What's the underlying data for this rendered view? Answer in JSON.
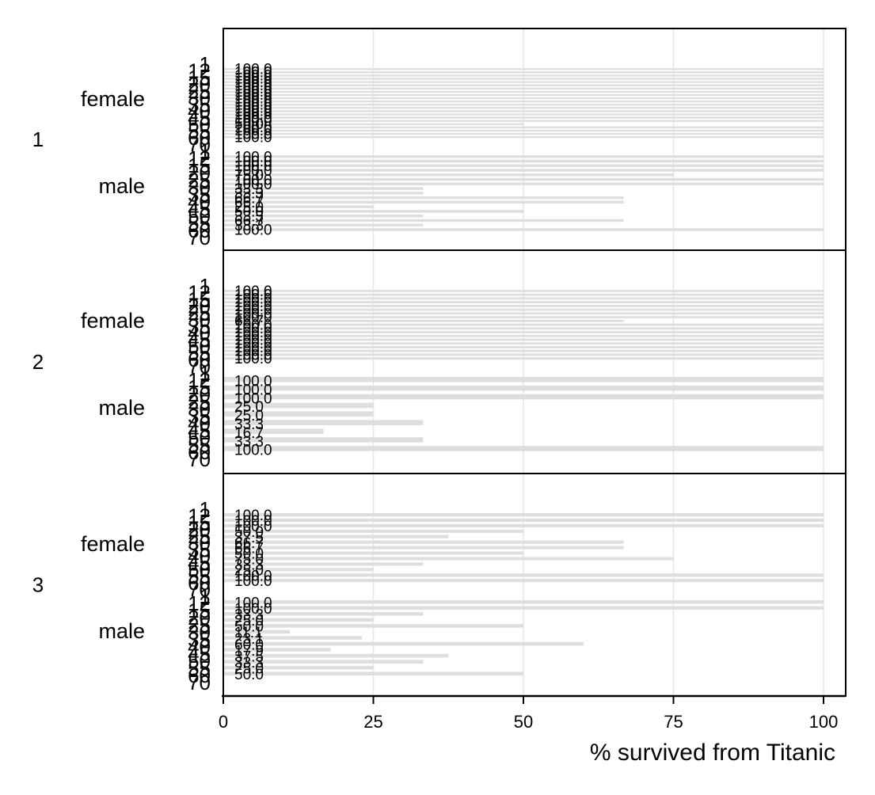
{
  "chart_data": {
    "type": "bar",
    "orientation": "horizontal",
    "xlabel": "% survived from Titanic",
    "xlim": [
      0,
      100
    ],
    "xticks": [
      0,
      25,
      50,
      75,
      100
    ],
    "grid": true,
    "groups": [
      "1",
      "2",
      "3"
    ],
    "subgroups": [
      "female",
      "male"
    ],
    "age_labels": [
      "1",
      "12",
      "15",
      "20",
      "25",
      "30",
      "35",
      "40",
      "45",
      "50",
      "55",
      "60",
      "70"
    ],
    "panels": [
      {
        "group": "1",
        "subgroups": [
          {
            "name": "female",
            "values": [
              100.0,
              100.0,
              100.0,
              100.0,
              100.0,
              100.0,
              100.0,
              100.0,
              100.0,
              100.0,
              100.0,
              100.0,
              100.0,
              100.0,
              100.0,
              100.0,
              100.0,
              50.0,
              100.0,
              100.0,
              100.0,
              100.0
            ]
          },
          {
            "name": "male",
            "values": [
              100.0,
              100.0,
              100.0,
              100.0,
              75.0,
              100.0,
              100.0,
              33.3,
              33.3,
              66.7,
              66.7,
              25.0,
              50.0,
              33.3,
              66.7,
              33.3,
              100.0
            ]
          }
        ]
      },
      {
        "group": "2",
        "subgroups": [
          {
            "name": "female",
            "values": [
              100.0,
              100.0,
              100.0,
              100.0,
              100.0,
              100.0,
              100.0,
              100.0,
              66.7,
              100.0,
              100.0,
              100.0,
              100.0,
              100.0,
              100.0,
              100.0,
              100.0,
              100.0,
              100.0
            ]
          },
          {
            "name": "male",
            "values": [
              100.0,
              100.0,
              100.0,
              25.0,
              25.0,
              33.3,
              16.7,
              33.3,
              100.0
            ]
          }
        ]
      },
      {
        "group": "3",
        "subgroups": [
          {
            "name": "female",
            "values": [
              100.0,
              100.0,
              100.0,
              50.0,
              37.5,
              66.7,
              66.7,
              50.0,
              75.0,
              33.3,
              25.0,
              100.0,
              100.0
            ]
          },
          {
            "name": "male",
            "values": [
              100.0,
              100.0,
              33.3,
              25.0,
              50.0,
              11.1,
              23.1,
              60.0,
              17.9,
              37.5,
              33.3,
              25.0,
              50.0
            ]
          }
        ]
      }
    ]
  }
}
